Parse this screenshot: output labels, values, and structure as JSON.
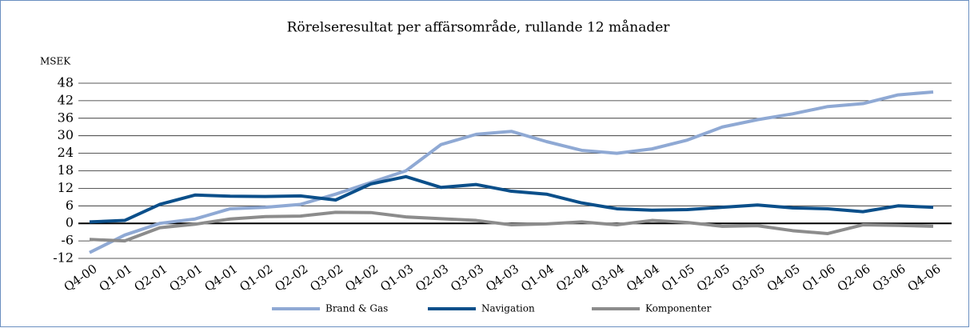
{
  "chart_data": {
    "type": "line",
    "title": "Rörelseresultat per affärsområde, rullande 12 månader",
    "y_label": "MSEK",
    "categories": [
      "Q4-00",
      "Q1-01",
      "Q2-01",
      "Q3-01",
      "Q4-01",
      "Q1-02",
      "Q2-02",
      "Q3-02",
      "Q4-02",
      "Q1-03",
      "Q2-03",
      "Q3-03",
      "Q4-03",
      "Q1-04",
      "Q2-04",
      "Q3-04",
      "Q4-04",
      "Q1-05",
      "Q2-05",
      "Q3-05",
      "Q4-05",
      "Q1-06",
      "Q2-06",
      "Q3-06",
      "Q4-06"
    ],
    "series": [
      {
        "name": "Brand & Gas",
        "color": "#8fa9d4",
        "values": [
          -10,
          -4,
          0,
          1.5,
          5,
          5.5,
          6.5,
          10,
          14,
          18,
          27,
          30.5,
          31.5,
          28,
          25,
          24,
          25.5,
          28.5,
          33,
          35.5,
          37.5,
          40,
          41,
          44,
          45
        ]
      },
      {
        "name": "Navigation",
        "color": "#0b4f8a",
        "values": [
          0.5,
          1,
          6.5,
          9.7,
          9.3,
          9.2,
          9.4,
          8,
          13.5,
          16,
          12.3,
          13.3,
          11,
          10,
          7,
          5,
          4.5,
          4.7,
          5.5,
          6.3,
          5.3,
          5,
          4,
          6,
          5.5
        ]
      },
      {
        "name": "Komponenter",
        "color": "#8c8c8c",
        "values": [
          -5.5,
          -6,
          -1.5,
          -0.3,
          1.5,
          2.3,
          2.5,
          3.8,
          3.7,
          2.2,
          1.6,
          1,
          -0.5,
          -0.2,
          0.5,
          -0.5,
          1,
          0.3,
          -1,
          -0.8,
          -2.5,
          -3.5,
          -0.5,
          -0.7,
          -1
        ]
      }
    ],
    "ylim": [
      -12,
      48
    ],
    "yticks": [
      -12,
      -6,
      0,
      6,
      12,
      18,
      24,
      30,
      36,
      42,
      48
    ],
    "grid": true,
    "legend": "bottom"
  }
}
